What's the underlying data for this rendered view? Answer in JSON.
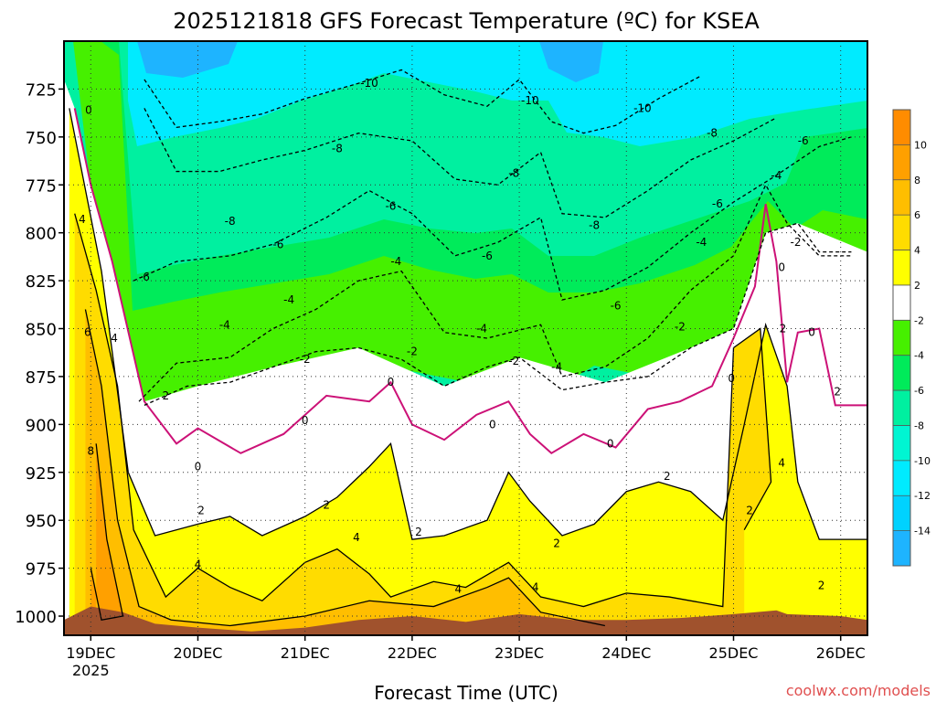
{
  "chart_data": {
    "type": "heatmap",
    "title": "2025121818 GFS Forecast Temperature (ºC) for KSEA",
    "xlabel": "Forecast Time (UTC)",
    "ylabel": "",
    "credit": "coolwx.com/models",
    "x_range_days": [
      18.75,
      26.25
    ],
    "y_range_hpa": [
      700,
      1010
    ],
    "y_ticks": [
      725,
      750,
      775,
      800,
      825,
      850,
      875,
      900,
      925,
      950,
      975,
      1000
    ],
    "x_ticks": [
      {
        "day": 19,
        "label": "19DEC",
        "sublabel": "2025"
      },
      {
        "day": 20,
        "label": "20DEC",
        "sublabel": ""
      },
      {
        "day": 21,
        "label": "21DEC",
        "sublabel": ""
      },
      {
        "day": 22,
        "label": "22DEC",
        "sublabel": ""
      },
      {
        "day": 23,
        "label": "23DEC",
        "sublabel": ""
      },
      {
        "day": 24,
        "label": "24DEC",
        "sublabel": ""
      },
      {
        "day": 25,
        "label": "25DEC",
        "sublabel": ""
      },
      {
        "day": 26,
        "label": "26DEC",
        "sublabel": ""
      }
    ],
    "colorbar": [
      {
        "from": -16,
        "to": -14,
        "color": "#1eb4ff"
      },
      {
        "from": -14,
        "to": -12,
        "color": "#00d2ff"
      },
      {
        "from": -12,
        "to": -10,
        "color": "#00ebff"
      },
      {
        "from": -10,
        "to": -8,
        "color": "#00f5d2"
      },
      {
        "from": -8,
        "to": -6,
        "color": "#00f0a0"
      },
      {
        "from": -6,
        "to": -4,
        "color": "#00eb5a"
      },
      {
        "from": -4,
        "to": -2,
        "color": "#46f000"
      },
      {
        "from": -2,
        "to": 2,
        "color": "#ffffff"
      },
      {
        "from": 2,
        "to": 4,
        "color": "#ffff00"
      },
      {
        "from": 4,
        "to": 6,
        "color": "#ffdc00"
      },
      {
        "from": 6,
        "to": 8,
        "color": "#ffbe00"
      },
      {
        "from": 8,
        "to": 10,
        "color": "#ffa000"
      },
      {
        "from": 10,
        "to": 12,
        "color": "#ff8c00"
      }
    ],
    "colorbar_labels": [
      "10",
      "8",
      "6",
      "4",
      "2",
      "-2",
      "-4",
      "-6",
      "-8",
      "-10",
      "-12",
      "-14"
    ],
    "ground_color": "#a0522d",
    "isotherms": [
      {
        "value": 0,
        "points": [
          [
            18.85,
            735
          ],
          [
            19.0,
            775
          ],
          [
            19.2,
            815
          ],
          [
            19.5,
            888
          ],
          [
            19.8,
            910
          ],
          [
            20.0,
            902
          ],
          [
            20.4,
            915
          ],
          [
            20.8,
            905
          ],
          [
            21.2,
            885
          ],
          [
            21.6,
            888
          ],
          [
            21.8,
            878
          ],
          [
            22.0,
            900
          ],
          [
            22.3,
            908
          ],
          [
            22.6,
            895
          ],
          [
            22.9,
            888
          ],
          [
            23.1,
            905
          ],
          [
            23.3,
            915
          ],
          [
            23.6,
            905
          ],
          [
            23.9,
            912
          ],
          [
            24.2,
            892
          ],
          [
            24.5,
            888
          ],
          [
            24.8,
            880
          ],
          [
            25.0,
            855
          ],
          [
            25.2,
            828
          ],
          [
            25.3,
            785
          ],
          [
            25.4,
            815
          ],
          [
            25.5,
            878
          ],
          [
            25.6,
            852
          ],
          [
            25.8,
            850
          ],
          [
            25.95,
            890
          ],
          [
            26.25,
            890
          ]
        ],
        "color": "#cc1177",
        "label_at": [
          [
            18.98,
            736
          ],
          [
            20.0,
            922
          ],
          [
            21.0,
            898
          ],
          [
            21.8,
            878
          ],
          [
            22.75,
            900
          ],
          [
            23.85,
            910
          ],
          [
            24.98,
            876
          ],
          [
            25.45,
            818
          ],
          [
            25.73,
            852
          ]
        ]
      },
      {
        "value": -10,
        "points": [
          [
            19.5,
            720
          ],
          [
            19.8,
            745
          ],
          [
            20.2,
            742
          ],
          [
            20.6,
            738
          ],
          [
            21.0,
            730
          ],
          [
            21.5,
            722
          ],
          [
            21.9,
            715
          ],
          [
            22.3,
            728
          ],
          [
            22.7,
            734
          ],
          [
            23.0,
            720
          ],
          [
            23.3,
            742
          ],
          [
            23.6,
            748
          ],
          [
            23.9,
            744
          ],
          [
            24.3,
            730
          ],
          [
            24.7,
            718
          ]
        ],
        "color": "#000000",
        "dashed": true,
        "label_at": [
          [
            21.6,
            722
          ],
          [
            23.1,
            731
          ],
          [
            24.15,
            735
          ]
        ]
      },
      {
        "value": -8,
        "points": [
          [
            19.5,
            735
          ],
          [
            19.8,
            768
          ],
          [
            20.2,
            768
          ],
          [
            20.6,
            762
          ],
          [
            21.0,
            757
          ],
          [
            21.5,
            748
          ],
          [
            22.0,
            752
          ],
          [
            22.4,
            772
          ],
          [
            22.8,
            775
          ],
          [
            23.2,
            758
          ],
          [
            23.4,
            790
          ],
          [
            23.8,
            792
          ],
          [
            24.2,
            778
          ],
          [
            24.6,
            762
          ],
          [
            25.0,
            752
          ],
          [
            25.4,
            740
          ]
        ],
        "color": "#000000",
        "dashed": true,
        "label_at": [
          [
            20.3,
            794
          ],
          [
            21.3,
            756
          ],
          [
            22.95,
            769
          ],
          [
            23.7,
            796
          ],
          [
            24.8,
            748
          ]
        ]
      },
      {
        "value": -6,
        "points": [
          [
            19.4,
            825
          ],
          [
            19.8,
            815
          ],
          [
            20.3,
            812
          ],
          [
            20.7,
            806
          ],
          [
            21.2,
            792
          ],
          [
            21.6,
            778
          ],
          [
            22.0,
            790
          ],
          [
            22.4,
            812
          ],
          [
            22.8,
            805
          ],
          [
            23.2,
            792
          ],
          [
            23.4,
            835
          ],
          [
            23.8,
            830
          ],
          [
            24.2,
            818
          ],
          [
            24.6,
            800
          ],
          [
            25.0,
            784
          ],
          [
            25.4,
            770
          ],
          [
            25.8,
            755
          ],
          [
            26.1,
            750
          ]
        ],
        "color": "#000000",
        "dashed": true,
        "label_at": [
          [
            19.5,
            823
          ],
          [
            20.75,
            806
          ],
          [
            21.8,
            786
          ],
          [
            22.7,
            812
          ],
          [
            23.9,
            838
          ],
          [
            24.85,
            785
          ],
          [
            25.65,
            752
          ]
        ]
      },
      {
        "value": -4,
        "points": [
          [
            19.45,
            888
          ],
          [
            19.8,
            868
          ],
          [
            20.3,
            865
          ],
          [
            20.7,
            850
          ],
          [
            21.1,
            840
          ],
          [
            21.5,
            825
          ],
          [
            21.9,
            820
          ],
          [
            22.3,
            852
          ],
          [
            22.7,
            855
          ],
          [
            23.2,
            848
          ],
          [
            23.4,
            875
          ],
          [
            23.8,
            870
          ],
          [
            24.2,
            855
          ],
          [
            24.6,
            830
          ],
          [
            25.0,
            812
          ],
          [
            25.3,
            775
          ],
          [
            25.5,
            795
          ],
          [
            25.8,
            812
          ],
          [
            26.1,
            812
          ]
        ],
        "color": "#000000",
        "dashed": true,
        "label_at": [
          [
            20.25,
            848
          ],
          [
            20.85,
            835
          ],
          [
            21.85,
            815
          ],
          [
            22.65,
            850
          ],
          [
            23.35,
            870
          ],
          [
            24.7,
            805
          ],
          [
            25.4,
            770
          ]
        ]
      },
      {
        "value": -2,
        "points": [
          [
            19.5,
            890
          ],
          [
            19.9,
            880
          ],
          [
            20.3,
            878
          ],
          [
            20.7,
            870
          ],
          [
            21.1,
            862
          ],
          [
            21.5,
            860
          ],
          [
            21.9,
            866
          ],
          [
            22.3,
            880
          ],
          [
            22.7,
            870
          ],
          [
            23.0,
            865
          ],
          [
            23.4,
            882
          ],
          [
            23.8,
            878
          ],
          [
            24.2,
            875
          ],
          [
            24.6,
            860
          ],
          [
            25.0,
            850
          ],
          [
            25.3,
            800
          ],
          [
            25.6,
            795
          ],
          [
            25.8,
            810
          ],
          [
            26.1,
            810
          ]
        ],
        "color": "#000000",
        "dashed": true,
        "label_at": [
          [
            21.0,
            866
          ],
          [
            22.0,
            862
          ],
          [
            22.95,
            867
          ],
          [
            24.5,
            849
          ],
          [
            25.58,
            805
          ]
        ]
      },
      {
        "value": 2,
        "points": [
          [
            18.8,
            735
          ],
          [
            19.1,
            820
          ],
          [
            19.35,
            925
          ],
          [
            19.6,
            958
          ],
          [
            20.0,
            952
          ],
          [
            20.3,
            948
          ],
          [
            20.6,
            958
          ],
          [
            21.0,
            948
          ],
          [
            21.3,
            938
          ],
          [
            21.6,
            922
          ],
          [
            21.8,
            910
          ],
          [
            22.0,
            960
          ],
          [
            22.3,
            958
          ],
          [
            22.7,
            950
          ],
          [
            22.9,
            925
          ],
          [
            23.1,
            940
          ],
          [
            23.4,
            958
          ],
          [
            23.7,
            952
          ],
          [
            24.0,
            935
          ],
          [
            24.3,
            930
          ],
          [
            24.6,
            935
          ],
          [
            24.9,
            950
          ],
          [
            25.1,
            900
          ],
          [
            25.3,
            848
          ],
          [
            25.5,
            880
          ],
          [
            25.6,
            930
          ],
          [
            25.8,
            960
          ],
          [
            26.25,
            960
          ]
        ],
        "color": "#000000",
        "label_at": [
          [
            19.7,
            885
          ],
          [
            20.03,
            945
          ],
          [
            21.2,
            942
          ],
          [
            22.06,
            956
          ],
          [
            23.35,
            962
          ],
          [
            24.38,
            927
          ],
          [
            25.15,
            945
          ],
          [
            25.46,
            850
          ],
          [
            25.82,
            984
          ],
          [
            25.97,
            883
          ]
        ]
      },
      {
        "value": 4,
        "points": [
          [
            18.85,
            790
          ],
          [
            19.05,
            830
          ],
          [
            19.25,
            880
          ],
          [
            19.4,
            955
          ],
          [
            19.7,
            990
          ],
          [
            20.0,
            975
          ],
          [
            20.3,
            985
          ],
          [
            20.6,
            992
          ],
          [
            21.0,
            972
          ],
          [
            21.3,
            965
          ],
          [
            21.6,
            978
          ],
          [
            21.8,
            990
          ],
          [
            22.2,
            982
          ],
          [
            22.5,
            985
          ],
          [
            22.9,
            972
          ],
          [
            23.2,
            990
          ],
          [
            23.6,
            995
          ],
          [
            24.0,
            988
          ],
          [
            24.4,
            990
          ],
          [
            24.9,
            995
          ],
          [
            25.0,
            860
          ],
          [
            25.25,
            850
          ],
          [
            25.35,
            930
          ],
          [
            25.1,
            955
          ]
        ],
        "color": "#000000",
        "label_at": [
          [
            18.92,
            793
          ],
          [
            19.22,
            855
          ],
          [
            20.0,
            973
          ],
          [
            21.48,
            959
          ],
          [
            22.43,
            986
          ],
          [
            23.15,
            985
          ],
          [
            25.45,
            920
          ]
        ]
      },
      {
        "value": 6,
        "points": [
          [
            18.95,
            840
          ],
          [
            19.1,
            880
          ],
          [
            19.25,
            950
          ],
          [
            19.45,
            995
          ],
          [
            19.75,
            1002
          ],
          [
            20.3,
            1005
          ],
          [
            21.0,
            1000
          ],
          [
            21.6,
            992
          ],
          [
            22.2,
            995
          ],
          [
            22.7,
            985
          ],
          [
            22.9,
            980
          ],
          [
            23.2,
            998
          ],
          [
            23.8,
            1005
          ]
        ],
        "color": "#000000",
        "label_at": [
          [
            18.97,
            852
          ]
        ]
      },
      {
        "value": 8,
        "points": [
          [
            19.05,
            910
          ],
          [
            19.15,
            960
          ],
          [
            19.3,
            1000
          ],
          [
            19.1,
            1002
          ],
          [
            19.0,
            975
          ]
        ],
        "color": "#000000",
        "label_at": [
          [
            19.0,
            914
          ]
        ]
      }
    ]
  }
}
